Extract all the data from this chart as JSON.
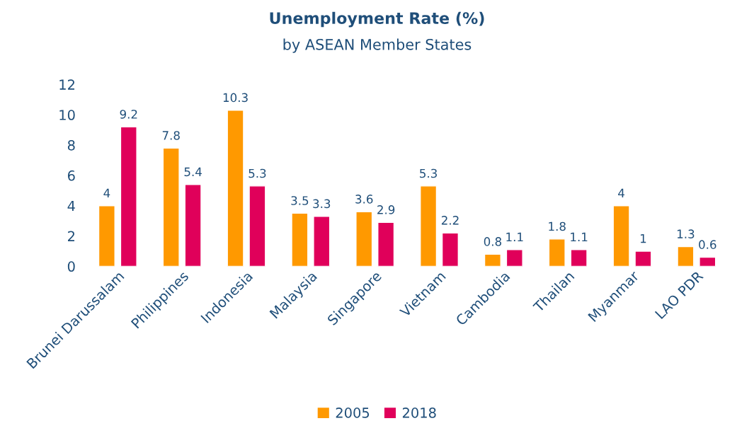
{
  "chart_data": {
    "type": "bar",
    "title": "Unemployment Rate (%)",
    "subtitle": "by ASEAN Member States",
    "categories": [
      "Brunei Darussalam",
      "Philippines",
      "Indonesia",
      "Malaysia",
      "Singapore",
      "Vietnam",
      "Cambodia",
      "Thailan",
      "Myanmar",
      "LAO PDR"
    ],
    "series": [
      {
        "name": "2005",
        "color": "#ff9900",
        "values": [
          4,
          7.8,
          10.3,
          3.5,
          3.6,
          5.3,
          0.8,
          1.8,
          4,
          1.3
        ]
      },
      {
        "name": "2018",
        "color": "#e0005a",
        "values": [
          9.2,
          5.4,
          5.3,
          3.3,
          2.9,
          2.2,
          1.1,
          1.1,
          1,
          0.6
        ]
      }
    ],
    "ylim": [
      0,
      12
    ],
    "yticks": [
      0,
      2,
      4,
      6,
      8,
      10,
      12
    ],
    "grid": false,
    "legend": "bottom",
    "data_labels": true
  }
}
